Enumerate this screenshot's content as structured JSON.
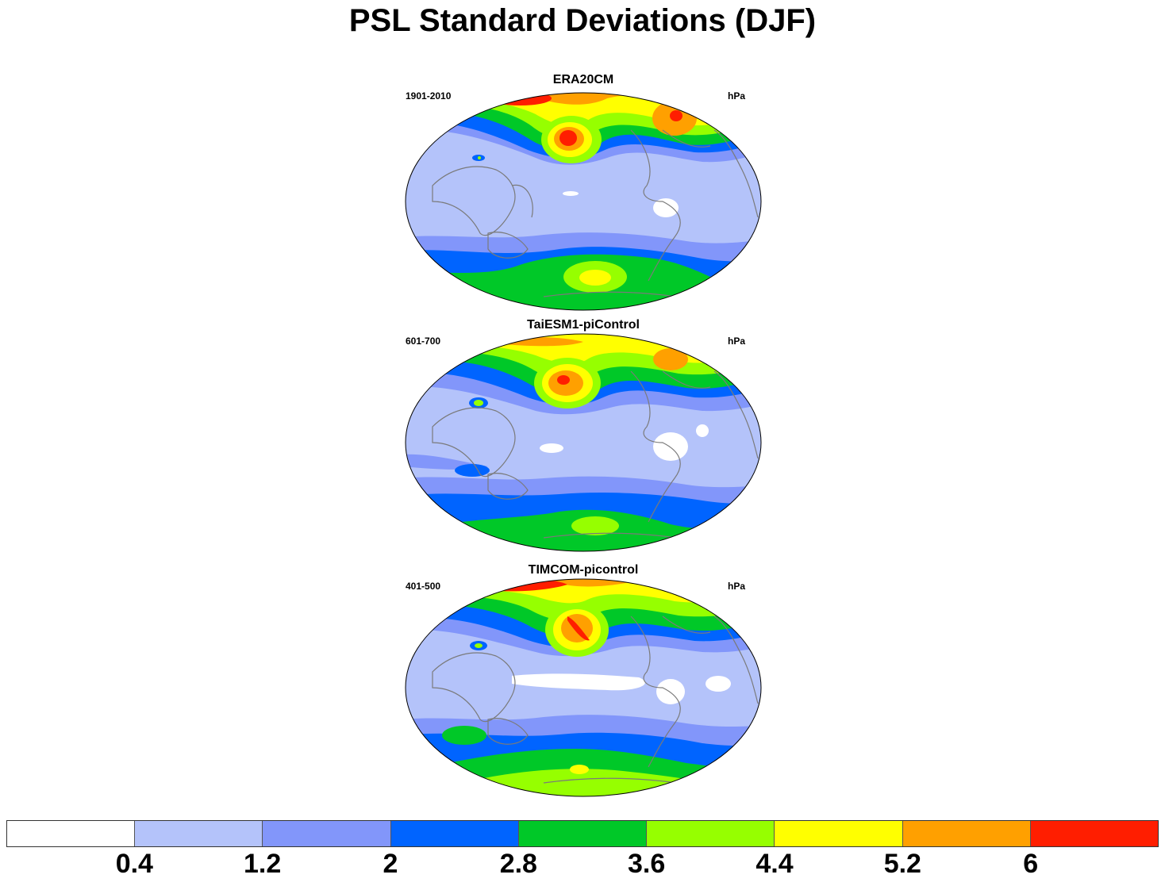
{
  "title": "PSL Standard Deviations (DJF)",
  "panels": [
    {
      "name": "ERA20CM",
      "period": "1901-2010",
      "units": "hPa"
    },
    {
      "name": "TaiESM1-piControl",
      "period": "601-700",
      "units": "hPa"
    },
    {
      "name": "TIMCOM-picontrol",
      "period": "401-500",
      "units": "hPa"
    }
  ],
  "colorbar": {
    "colors": [
      "#ffffff",
      "#b4c3fa",
      "#8296fa",
      "#0064ff",
      "#00c828",
      "#96ff00",
      "#ffff00",
      "#ffa000",
      "#ff1e00"
    ],
    "labels": [
      "0.4",
      "1.2",
      "2",
      "2.8",
      "3.6",
      "4.4",
      "5.2",
      "6"
    ]
  }
}
